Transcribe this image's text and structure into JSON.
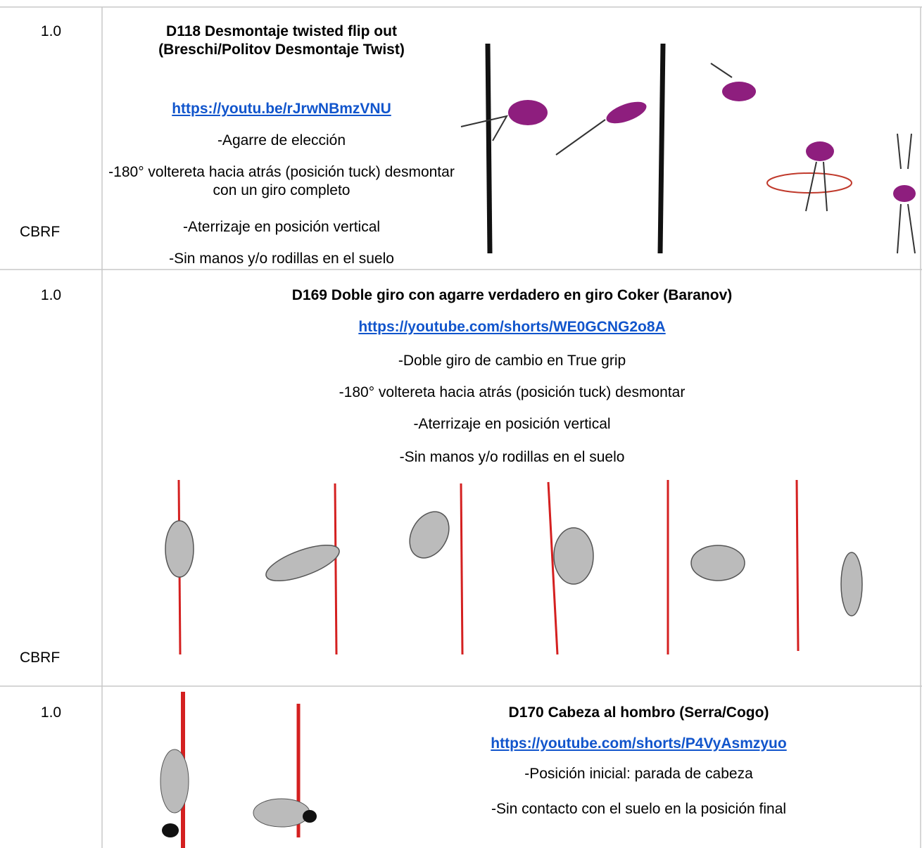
{
  "rows": [
    {
      "score": "1.0",
      "code": "CBRF",
      "title": "D118 Desmontaje twisted flip out (Breschi/Politov Desmontaje Twist)",
      "link": "https://youtu.be/rJrwNBmzVNU",
      "lines": [
        "-Agarre de elección",
        "-180° voltereta hacia atrás (posición tuck) desmontar con un giro completo",
        "-Aterrizaje en posición vertical",
        "-Sin manos y/o rodillas en el suelo"
      ]
    },
    {
      "score": "1.0",
      "code": "CBRF",
      "title": "D169 Doble giro con agarre verdadero en giro Coker (Baranov)",
      "link": "https://youtube.com/shorts/WE0GCNG2o8A",
      "lines": [
        "-Doble giro de cambio en True grip",
        "-180° voltereta hacia atrás (posición tuck) desmontar",
        "-Aterrizaje en posición vertical",
        "-Sin manos y/o rodillas en el suelo"
      ]
    },
    {
      "score": "1.0",
      "title": "D170 Cabeza al hombro (Serra/Cogo)",
      "link": "https://youtube.com/shorts/P4VyAsmzyuo",
      "lines": [
        "-Posición inicial: parada de cabeza",
        "-Sin contacto con el suelo en la posición final"
      ]
    }
  ]
}
